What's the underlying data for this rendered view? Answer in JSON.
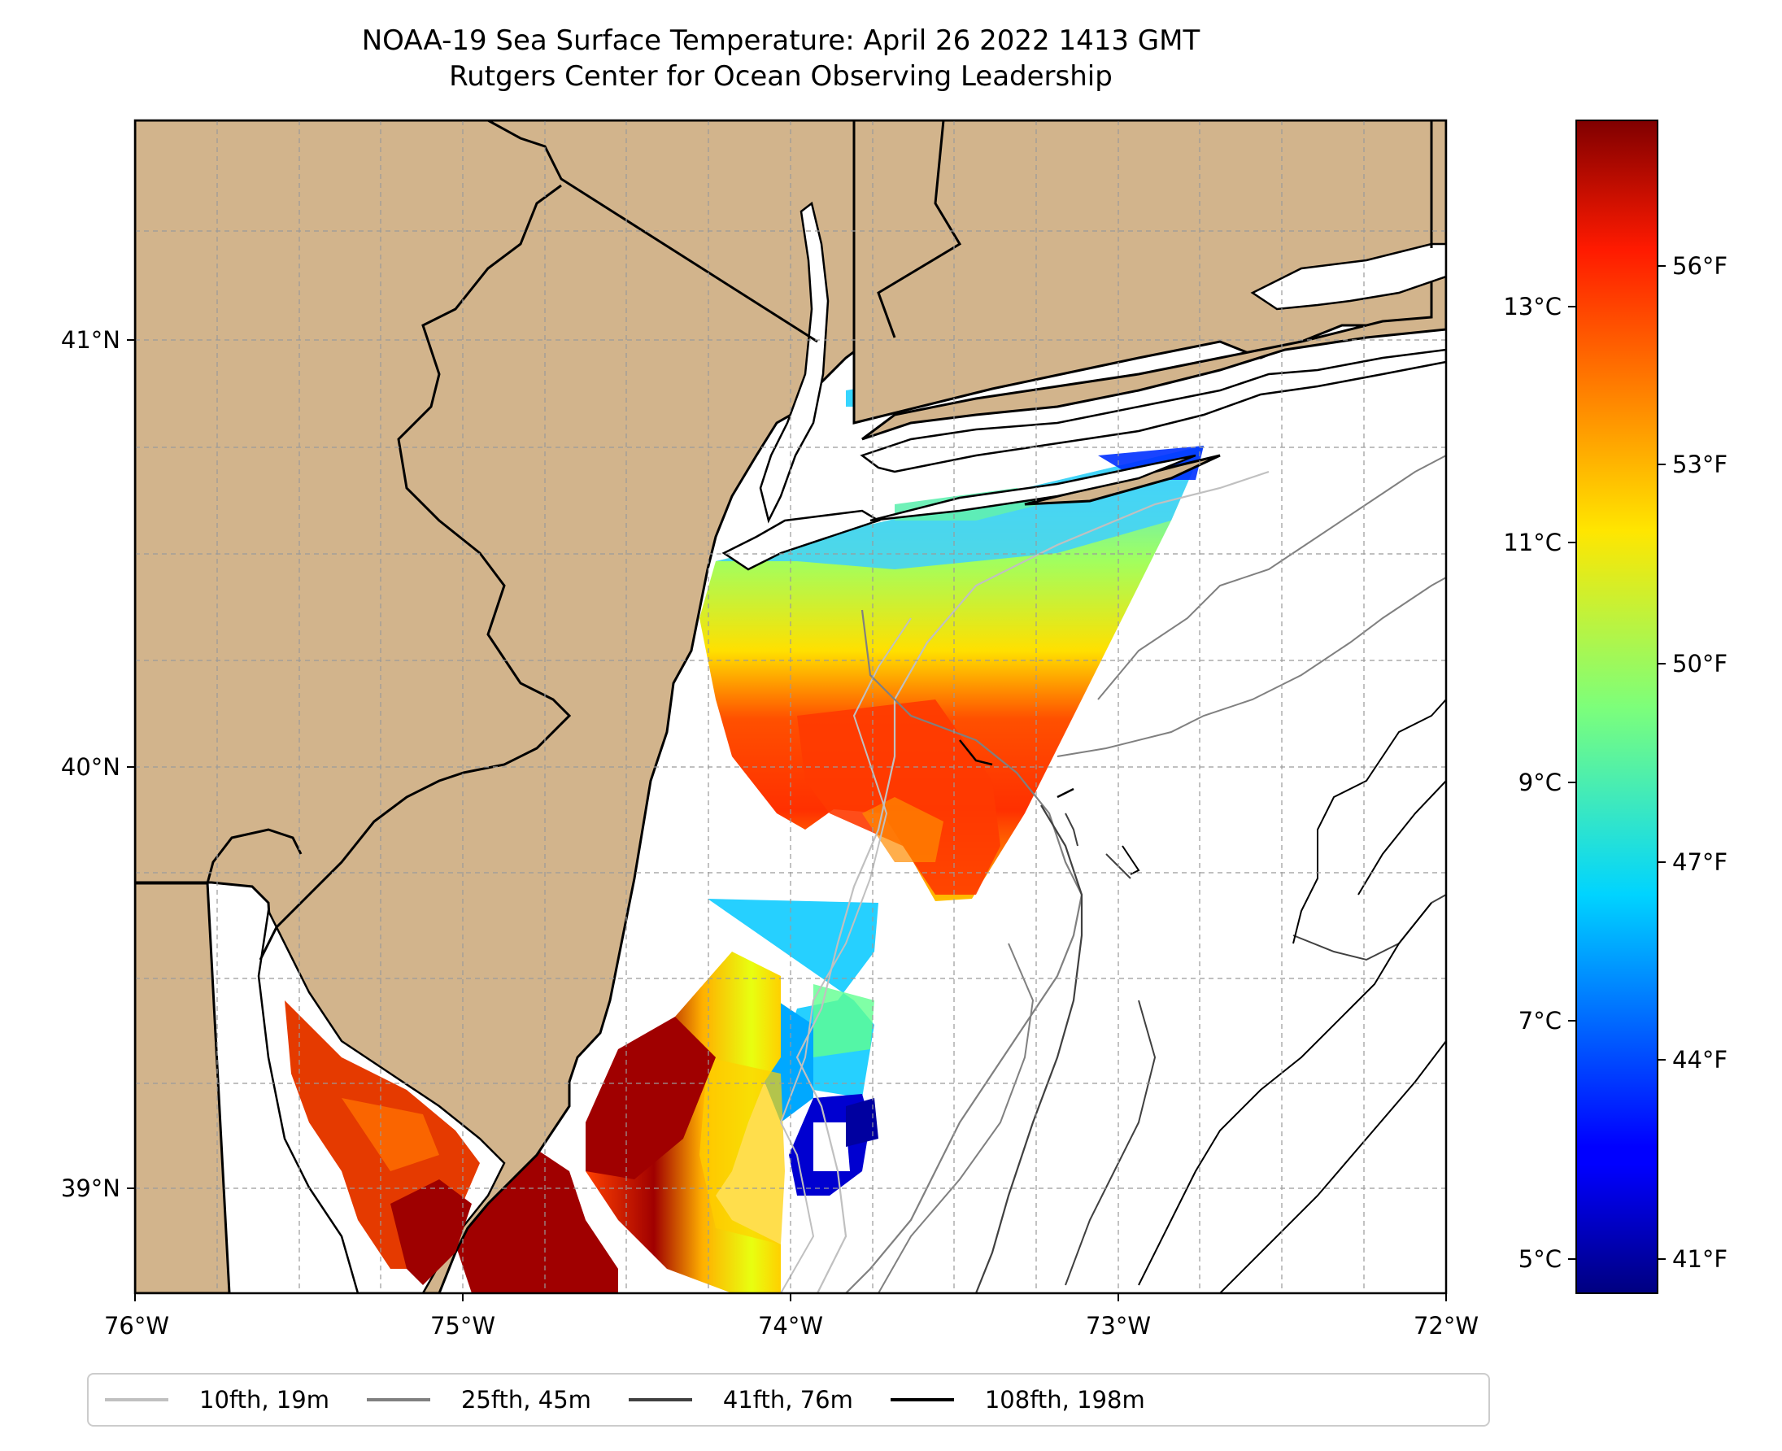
{
  "title": {
    "line1": "NOAA-19 Sea Surface Temperature: April 26 2022 1413 GMT",
    "line2": "Rutgers Center for Ocean Observing Leadership"
  },
  "map": {
    "lon_range": [
      -76,
      -72
    ],
    "lat_range": [
      38.75,
      41.5
    ],
    "lon_ticks": [
      "76°W",
      "75°W",
      "74°W",
      "73°W",
      "72°W"
    ],
    "lat_ticks": [
      "41°N",
      "40°N",
      "39°N"
    ],
    "land_color": "#d2b48c",
    "gridlines": true
  },
  "colorbar": {
    "colormap": "jet",
    "range_c": [
      4.4,
      14.4
    ],
    "celsius_ticks": [
      "13°C",
      "11°C",
      "9°C",
      "7°C",
      "5°C"
    ],
    "fahrenheit_ticks": [
      "56°F",
      "53°F",
      "50°F",
      "47°F",
      "44°F",
      "41°F"
    ]
  },
  "legend": {
    "items": [
      {
        "label": "10fth, 19m",
        "color": "#c0c0c0"
      },
      {
        "label": "25fth, 45m",
        "color": "#808080"
      },
      {
        "label": "41fth, 76m",
        "color": "#404040"
      },
      {
        "label": "108fth, 198m",
        "color": "#000000"
      }
    ]
  }
}
